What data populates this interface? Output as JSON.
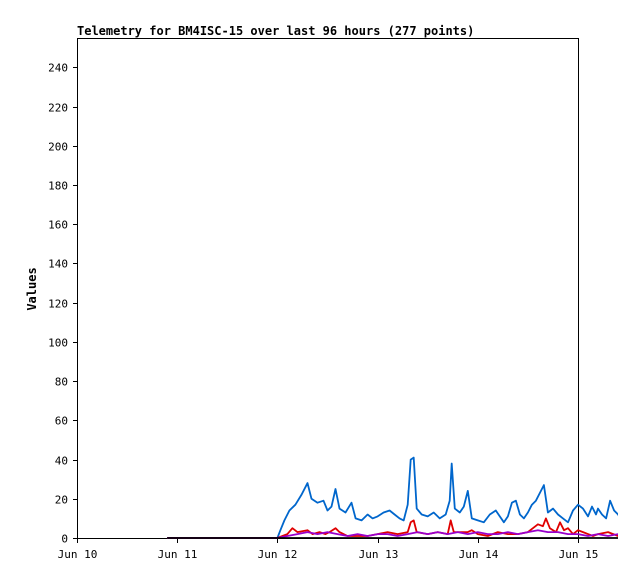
{
  "chart_data": {
    "type": "line",
    "title": "Telemetry for BM4ISC-15 over last 96 hours (277 points)",
    "xlabel": "",
    "ylabel": "Values",
    "xlim": [
      "Jun 10",
      "Jun 15"
    ],
    "ylim": [
      0,
      255
    ],
    "grid": false,
    "legend": "none",
    "x_ticks": [
      "Jun 10",
      "Jun 11",
      "Jun 12",
      "Jun 13",
      "Jun 14",
      "Jun 15"
    ],
    "y_ticks": [
      0,
      20,
      40,
      60,
      80,
      100,
      120,
      140,
      160,
      180,
      200,
      220,
      240
    ],
    "series": [
      {
        "color": "#0066cc",
        "points": [
          [
            0.9,
            0
          ],
          [
            2.0,
            0
          ],
          [
            2.03,
            4
          ],
          [
            2.07,
            9
          ],
          [
            2.12,
            14
          ],
          [
            2.18,
            17
          ],
          [
            2.24,
            22
          ],
          [
            2.3,
            28
          ],
          [
            2.34,
            20
          ],
          [
            2.4,
            18
          ],
          [
            2.46,
            19
          ],
          [
            2.5,
            14
          ],
          [
            2.54,
            16
          ],
          [
            2.58,
            25
          ],
          [
            2.62,
            15
          ],
          [
            2.68,
            13
          ],
          [
            2.74,
            18
          ],
          [
            2.78,
            10
          ],
          [
            2.84,
            9
          ],
          [
            2.9,
            12
          ],
          [
            2.95,
            10
          ],
          [
            3.0,
            11
          ],
          [
            3.06,
            13
          ],
          [
            3.12,
            14
          ],
          [
            3.17,
            12
          ],
          [
            3.22,
            10
          ],
          [
            3.26,
            9
          ],
          [
            3.3,
            17
          ],
          [
            3.33,
            40
          ],
          [
            3.36,
            41
          ],
          [
            3.39,
            15
          ],
          [
            3.44,
            12
          ],
          [
            3.5,
            11
          ],
          [
            3.56,
            13
          ],
          [
            3.62,
            10
          ],
          [
            3.68,
            12
          ],
          [
            3.72,
            19
          ],
          [
            3.74,
            38
          ],
          [
            3.77,
            15
          ],
          [
            3.82,
            13
          ],
          [
            3.86,
            16
          ],
          [
            3.9,
            24
          ],
          [
            3.94,
            10
          ],
          [
            4.0,
            9
          ],
          [
            4.06,
            8
          ],
          [
            4.12,
            12
          ],
          [
            4.18,
            14
          ],
          [
            4.22,
            11
          ],
          [
            4.26,
            8
          ],
          [
            4.3,
            11
          ],
          [
            4.34,
            18
          ],
          [
            4.38,
            19
          ],
          [
            4.42,
            12
          ],
          [
            4.46,
            10
          ],
          [
            4.5,
            13
          ],
          [
            4.54,
            17
          ],
          [
            4.58,
            19
          ],
          [
            4.62,
            23
          ],
          [
            4.66,
            27
          ],
          [
            4.7,
            13
          ],
          [
            4.75,
            15
          ],
          [
            4.8,
            12
          ],
          [
            4.85,
            10
          ],
          [
            4.9,
            8
          ],
          [
            4.95,
            14
          ],
          [
            5.0,
            17
          ],
          [
            5.05,
            15
          ],
          [
            5.1,
            11
          ],
          [
            5.14,
            16
          ],
          [
            5.18,
            12
          ],
          [
            5.2,
            15
          ],
          [
            5.24,
            12
          ],
          [
            5.28,
            10
          ],
          [
            5.32,
            19
          ],
          [
            5.36,
            14
          ],
          [
            5.4,
            12
          ],
          [
            5.44,
            8
          ],
          [
            5.48,
            5
          ],
          [
            5.52,
            13
          ],
          [
            5.55,
            18
          ],
          [
            5.58,
            12
          ],
          [
            5.62,
            13
          ],
          [
            5.66,
            15
          ],
          [
            5.7,
            14
          ],
          [
            5.74,
            17
          ],
          [
            5.78,
            14
          ],
          [
            5.82,
            16
          ],
          [
            5.86,
            13
          ],
          [
            5.89,
            14
          ],
          [
            5.92,
            12
          ],
          [
            5.95,
            14
          ],
          [
            5.97,
            11
          ]
        ]
      },
      {
        "color": "#e00000",
        "points": [
          [
            0.9,
            0
          ],
          [
            2.0,
            0
          ],
          [
            2.05,
            1
          ],
          [
            2.1,
            2
          ],
          [
            2.15,
            5
          ],
          [
            2.2,
            3
          ],
          [
            2.3,
            4
          ],
          [
            2.35,
            2
          ],
          [
            2.42,
            3
          ],
          [
            2.48,
            2
          ],
          [
            2.52,
            3
          ],
          [
            2.58,
            5
          ],
          [
            2.62,
            3
          ],
          [
            2.7,
            1
          ],
          [
            2.8,
            1
          ],
          [
            2.9,
            1
          ],
          [
            3.0,
            2
          ],
          [
            3.1,
            3
          ],
          [
            3.2,
            2
          ],
          [
            3.3,
            3
          ],
          [
            3.33,
            8
          ],
          [
            3.36,
            9
          ],
          [
            3.39,
            3
          ],
          [
            3.5,
            2
          ],
          [
            3.6,
            3
          ],
          [
            3.7,
            2
          ],
          [
            3.73,
            9
          ],
          [
            3.76,
            3
          ],
          [
            3.9,
            3
          ],
          [
            3.94,
            4
          ],
          [
            4.0,
            2
          ],
          [
            4.1,
            1
          ],
          [
            4.2,
            3
          ],
          [
            4.3,
            2
          ],
          [
            4.4,
            2
          ],
          [
            4.5,
            3
          ],
          [
            4.55,
            5
          ],
          [
            4.6,
            7
          ],
          [
            4.65,
            6
          ],
          [
            4.68,
            10
          ],
          [
            4.72,
            5
          ],
          [
            4.78,
            3
          ],
          [
            4.82,
            8
          ],
          [
            4.86,
            4
          ],
          [
            4.9,
            5
          ],
          [
            4.95,
            2
          ],
          [
            5.0,
            4
          ],
          [
            5.05,
            3
          ],
          [
            5.1,
            2
          ],
          [
            5.15,
            1
          ],
          [
            5.2,
            2
          ],
          [
            5.3,
            3
          ],
          [
            5.4,
            1
          ],
          [
            5.5,
            2
          ],
          [
            5.6,
            3
          ],
          [
            5.7,
            2
          ],
          [
            5.8,
            3
          ],
          [
            5.9,
            2
          ],
          [
            5.97,
            2
          ]
        ]
      },
      {
        "color": "#9900cc",
        "points": [
          [
            0.9,
            0
          ],
          [
            2.0,
            0
          ],
          [
            2.1,
            1
          ],
          [
            2.2,
            2
          ],
          [
            2.3,
            3
          ],
          [
            2.4,
            2
          ],
          [
            2.5,
            3
          ],
          [
            2.6,
            2
          ],
          [
            2.7,
            1
          ],
          [
            2.8,
            2
          ],
          [
            2.9,
            1
          ],
          [
            3.0,
            2
          ],
          [
            3.1,
            2
          ],
          [
            3.2,
            1
          ],
          [
            3.3,
            2
          ],
          [
            3.4,
            3
          ],
          [
            3.5,
            2
          ],
          [
            3.6,
            3
          ],
          [
            3.7,
            2
          ],
          [
            3.8,
            3
          ],
          [
            3.9,
            2
          ],
          [
            4.0,
            3
          ],
          [
            4.1,
            2
          ],
          [
            4.2,
            2
          ],
          [
            4.3,
            3
          ],
          [
            4.4,
            2
          ],
          [
            4.5,
            3
          ],
          [
            4.6,
            4
          ],
          [
            4.7,
            3
          ],
          [
            4.8,
            3
          ],
          [
            4.9,
            2
          ],
          [
            5.0,
            2
          ],
          [
            5.1,
            1
          ],
          [
            5.2,
            2
          ],
          [
            5.3,
            1
          ],
          [
            5.4,
            2
          ],
          [
            5.5,
            2
          ],
          [
            5.6,
            1
          ],
          [
            5.7,
            2
          ],
          [
            5.8,
            2
          ],
          [
            5.9,
            1
          ],
          [
            5.97,
            1
          ]
        ]
      },
      {
        "color": "#000000",
        "points": [
          [
            0.9,
            0
          ],
          [
            2.0,
            0
          ],
          [
            2.3,
            0
          ],
          [
            2.6,
            0
          ],
          [
            3.0,
            0
          ],
          [
            3.3,
            0
          ],
          [
            3.6,
            0
          ],
          [
            4.0,
            0
          ],
          [
            4.3,
            0
          ],
          [
            4.6,
            0
          ],
          [
            5.0,
            0
          ],
          [
            5.3,
            0
          ],
          [
            5.6,
            0
          ],
          [
            5.97,
            0
          ]
        ]
      }
    ]
  }
}
